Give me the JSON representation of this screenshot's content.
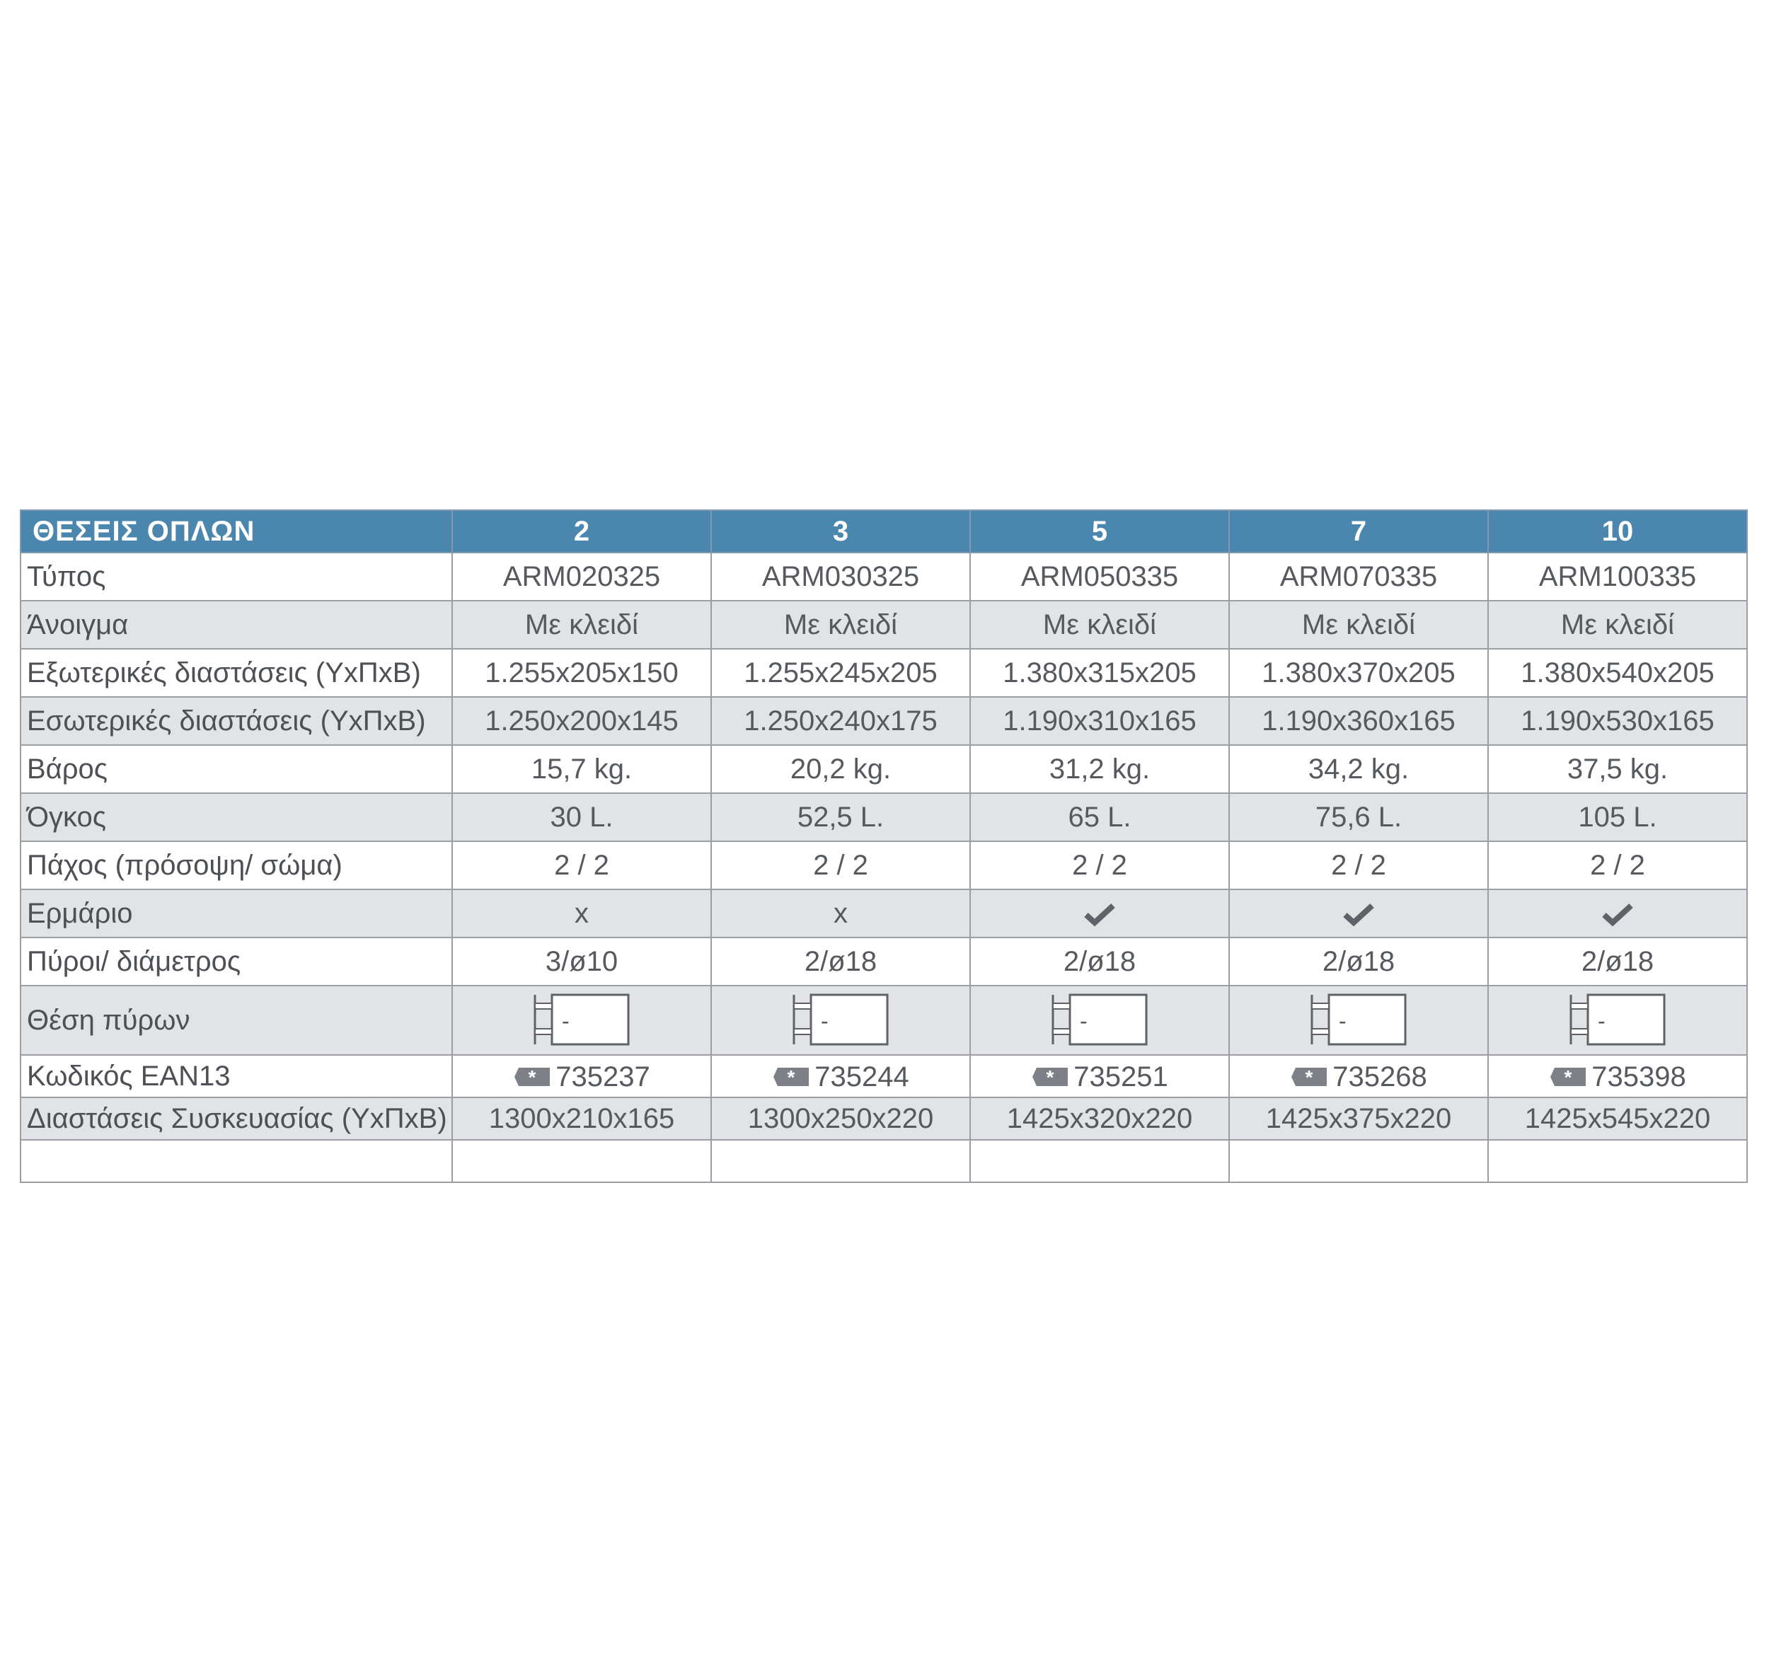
{
  "table": {
    "header": {
      "label": "ΘΕΣΕΙΣ ΟΠΛΩΝ",
      "columns": [
        "2",
        "3",
        "5",
        "7",
        "10"
      ]
    },
    "rows": [
      {
        "label": "Τύπος",
        "values": [
          "ARM020325",
          "ARM030325",
          "ARM050335",
          "ARM070335",
          "ARM100335"
        ]
      },
      {
        "label": "Άνοιγμα",
        "values": [
          "Με κλειδί",
          "Με κλειδί",
          "Με κλειδί",
          "Με κλειδί",
          "Με κλειδί"
        ]
      },
      {
        "label": "Εξωτερικές διαστάσεις (ΥxΠxΒ)",
        "values": [
          "1.255x205x150",
          "1.255x245x205",
          "1.380x315x205",
          "1.380x370x205",
          "1.380x540x205"
        ]
      },
      {
        "label": "Εσωτερικές διαστάσεις (ΥxΠxΒ)",
        "values": [
          "1.250x200x145",
          "1.250x240x175",
          "1.190x310x165",
          "1.190x360x165",
          "1.190x530x165"
        ]
      },
      {
        "label": "Βάρος",
        "values": [
          "15,7 kg.",
          "20,2 kg.",
          "31,2 kg.",
          "34,2 kg.",
          "37,5 kg."
        ]
      },
      {
        "label": "Όγκος",
        "values": [
          "30 L.",
          "52,5 L.",
          "65 L.",
          "75,6 L.",
          "105 L."
        ]
      },
      {
        "label": "Πάχος (πρόσοψη/ σώμα)",
        "values": [
          "2 / 2",
          "2 / 2",
          "2 / 2",
          "2 / 2",
          "2 / 2"
        ]
      },
      {
        "label": "Ερμάριο",
        "values": [
          "x",
          "x",
          "",
          "",
          ""
        ],
        "icons": [
          "",
          "",
          "check-icon",
          "check-icon",
          "check-icon"
        ]
      },
      {
        "label": "Πύροι/ διάμετρος",
        "values": [
          "3/ø10",
          "2/ø18",
          "2/ø18",
          "2/ø18",
          "2/ø18"
        ]
      },
      {
        "label": "Θέση πύρων",
        "values": [
          "-",
          "-",
          "-",
          "-",
          "-"
        ],
        "icons": [
          "bolt-diagram-icon",
          "bolt-diagram-icon",
          "bolt-diagram-icon",
          "bolt-diagram-icon",
          "bolt-diagram-icon"
        ]
      },
      {
        "label": "Κωδικός EAN13",
        "values": [
          "735237",
          "735244",
          "735251",
          "735268",
          "735398"
        ],
        "icons": [
          "barcode-tag-icon",
          "barcode-tag-icon",
          "barcode-tag-icon",
          "barcode-tag-icon",
          "barcode-tag-icon"
        ]
      },
      {
        "label": "Διαστάσεις Συσκευασίας (ΥxΠxΒ)",
        "values": [
          "1300x210x165",
          "1300x250x220",
          "1425x320x220",
          "1425x375x220",
          "1425x545x220"
        ]
      }
    ]
  },
  "colors": {
    "header_bg": "#4a86ad",
    "shade_bg": "#e1e3e6",
    "border": "#9b9ea3",
    "text": "#56595e"
  }
}
